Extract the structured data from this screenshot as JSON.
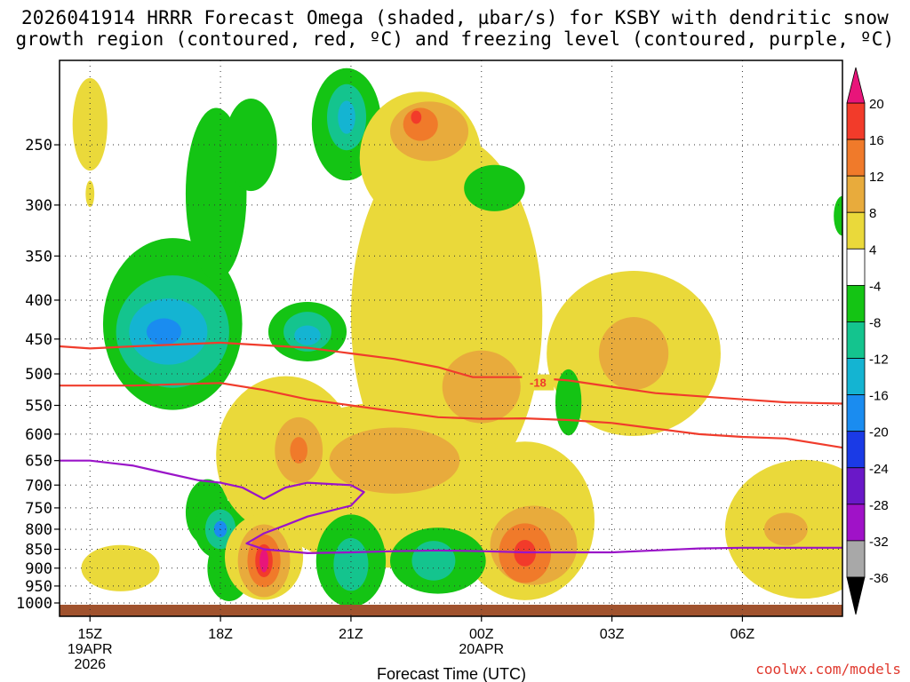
{
  "title": {
    "line1": "2026041914 HRRR Forecast Omega (shaded, µbar/s) for KSBY with dendritic snow",
    "line2": "growth region (contoured, red, ºC) and freezing level (contoured, purple, ºC)"
  },
  "credit": "coolwx.com/models",
  "chart_data": {
    "type": "heatmap",
    "xlabel": "Forecast Time (UTC)",
    "x_ticks": [
      {
        "hour": 0,
        "label": "15Z",
        "sub1": "19APR",
        "sub2": "2026"
      },
      {
        "hour": 3,
        "label": "18Z",
        "sub1": "",
        "sub2": ""
      },
      {
        "hour": 6,
        "label": "21Z",
        "sub1": "",
        "sub2": ""
      },
      {
        "hour": 9,
        "label": "00Z",
        "sub1": "20APR",
        "sub2": ""
      },
      {
        "hour": 12,
        "label": "03Z",
        "sub1": "",
        "sub2": ""
      },
      {
        "hour": 15,
        "label": "06Z",
        "sub1": "",
        "sub2": ""
      }
    ],
    "xlim_hours": [
      -0.7,
      17.3
    ],
    "y_axis": "pressure (hPa), log scale, inverted",
    "ylim": [
      1000,
      200
    ],
    "y_ticks": [
      250,
      300,
      350,
      400,
      450,
      500,
      550,
      600,
      650,
      700,
      750,
      800,
      850,
      900,
      950,
      1000
    ],
    "grid": true,
    "colorbar": {
      "label_values": [
        "20",
        "16",
        "12",
        "8",
        "4",
        "-4",
        "-8",
        "-12",
        "-16",
        "-20",
        "-24",
        "-28",
        "-32",
        "-36"
      ],
      "bins": [
        {
          "range": ">20",
          "color": "#e8157a"
        },
        {
          "range": "16 to 20",
          "color": "#f23b2a"
        },
        {
          "range": "12 to 16",
          "color": "#f07a2a"
        },
        {
          "range": "8 to 12",
          "color": "#e8ab3c"
        },
        {
          "range": "4 to 8",
          "color": "#ead93a"
        },
        {
          "range": "-4 to 4",
          "color": "#ffffff"
        },
        {
          "range": "-8 to -4",
          "color": "#14c414"
        },
        {
          "range": "-12 to -8",
          "color": "#14c48e"
        },
        {
          "range": "-16 to -12",
          "color": "#14b4d2"
        },
        {
          "range": "-20 to -16",
          "color": "#1a8cf0"
        },
        {
          "range": "-24 to -20",
          "color": "#1a3ae6"
        },
        {
          "range": "-28 to -24",
          "color": "#6a18c8"
        },
        {
          "range": "-32 to -28",
          "color": "#a012c8"
        },
        {
          "range": "-36 to -32",
          "color": "#a8a8a8"
        },
        {
          "range": "<-36",
          "color": "#000000"
        }
      ]
    },
    "omega_regions": [
      {
        "color": "#ead93a",
        "t": 0.0,
        "p": 235,
        "rt": 0.4,
        "rp": 0.14
      },
      {
        "color": "#ead93a",
        "t": 0.0,
        "p": 290,
        "rt": 0.1,
        "rp": 0.04
      },
      {
        "color": "#14c414",
        "t": 1.9,
        "p": 430,
        "rt": 1.6,
        "rp": 0.26
      },
      {
        "color": "#14c414",
        "t": 2.9,
        "p": 290,
        "rt": 0.7,
        "rp": 0.26
      },
      {
        "color": "#14c414",
        "t": 3.7,
        "p": 250,
        "rt": 0.6,
        "rp": 0.14
      },
      {
        "color": "#14c414",
        "t": 2.7,
        "p": 760,
        "rt": 0.5,
        "rp": 0.1
      },
      {
        "color": "#14c414",
        "t": 3.2,
        "p": 900,
        "rt": 0.5,
        "rp": 0.1
      },
      {
        "color": "#14c48e",
        "t": 1.9,
        "p": 440,
        "rt": 1.3,
        "rp": 0.17
      },
      {
        "color": "#14b4d2",
        "t": 1.8,
        "p": 440,
        "rt": 0.9,
        "rp": 0.1
      },
      {
        "color": "#1a8cf0",
        "t": 1.7,
        "p": 440,
        "rt": 0.4,
        "rp": 0.04
      },
      {
        "color": "#14c414",
        "t": 5.0,
        "p": 440,
        "rt": 0.9,
        "rp": 0.09
      },
      {
        "color": "#14c48e",
        "t": 5.0,
        "p": 440,
        "rt": 0.55,
        "rp": 0.06
      },
      {
        "color": "#14b4d2",
        "t": 5.0,
        "p": 445,
        "rt": 0.3,
        "rp": 0.03
      },
      {
        "color": "#14c414",
        "t": 5.9,
        "p": 235,
        "rt": 0.8,
        "rp": 0.17
      },
      {
        "color": "#14c48e",
        "t": 5.9,
        "p": 230,
        "rt": 0.45,
        "rp": 0.1
      },
      {
        "color": "#14b4d2",
        "t": 5.9,
        "p": 230,
        "rt": 0.2,
        "rp": 0.05
      },
      {
        "color": "#14c414",
        "t": 3.0,
        "p": 800,
        "rt": 0.6,
        "rp": 0.09
      },
      {
        "color": "#14c48e",
        "t": 3.0,
        "p": 800,
        "rt": 0.35,
        "rp": 0.06
      },
      {
        "color": "#1a8cf0",
        "t": 3.0,
        "p": 800,
        "rt": 0.15,
        "rp": 0.025
      },
      {
        "color": "#ead93a",
        "t": 8.2,
        "p": 420,
        "rt": 2.2,
        "rp": 0.55
      },
      {
        "color": "#ead93a",
        "t": 7.6,
        "p": 260,
        "rt": 1.4,
        "rp": 0.2
      },
      {
        "color": "#ead93a",
        "t": 6.8,
        "p": 700,
        "rt": 2.9,
        "rp": 0.25
      },
      {
        "color": "#ead93a",
        "t": 4.5,
        "p": 640,
        "rt": 1.6,
        "rp": 0.24
      },
      {
        "color": "#ead93a",
        "t": 4.0,
        "p": 870,
        "rt": 0.9,
        "rp": 0.13
      },
      {
        "color": "#ead93a",
        "t": 10.0,
        "p": 780,
        "rt": 1.6,
        "rp": 0.24
      },
      {
        "color": "#ead93a",
        "t": 12.5,
        "p": 470,
        "rt": 2.0,
        "rp": 0.25
      },
      {
        "color": "#ead93a",
        "t": 16.4,
        "p": 800,
        "rt": 1.8,
        "rp": 0.21
      },
      {
        "color": "#ead93a",
        "t": 0.7,
        "p": 900,
        "rt": 0.9,
        "rp": 0.07
      },
      {
        "color": "#e8ab3c",
        "t": 7.8,
        "p": 240,
        "rt": 0.9,
        "rp": 0.09
      },
      {
        "color": "#f07a2a",
        "t": 7.6,
        "p": 235,
        "rt": 0.4,
        "rp": 0.05
      },
      {
        "color": "#f23b2a",
        "t": 7.5,
        "p": 230,
        "rt": 0.12,
        "rp": 0.02
      },
      {
        "color": "#e8ab3c",
        "t": 9.0,
        "p": 520,
        "rt": 0.9,
        "rp": 0.11
      },
      {
        "color": "#e8ab3c",
        "t": 7.0,
        "p": 650,
        "rt": 1.5,
        "rp": 0.1
      },
      {
        "color": "#e8ab3c",
        "t": 4.8,
        "p": 630,
        "rt": 0.55,
        "rp": 0.1
      },
      {
        "color": "#f07a2a",
        "t": 4.8,
        "p": 630,
        "rt": 0.2,
        "rp": 0.04
      },
      {
        "color": "#e8ab3c",
        "t": 12.5,
        "p": 470,
        "rt": 0.8,
        "rp": 0.11
      },
      {
        "color": "#e8ab3c",
        "t": 10.2,
        "p": 840,
        "rt": 1.0,
        "rp": 0.12
      },
      {
        "color": "#f07a2a",
        "t": 10.0,
        "p": 860,
        "rt": 0.6,
        "rp": 0.09
      },
      {
        "color": "#f23b2a",
        "t": 10.0,
        "p": 860,
        "rt": 0.25,
        "rp": 0.04
      },
      {
        "color": "#e8ab3c",
        "t": 16.0,
        "p": 800,
        "rt": 0.5,
        "rp": 0.05
      },
      {
        "color": "#e8ab3c",
        "t": 4.0,
        "p": 880,
        "rt": 0.6,
        "rp": 0.11
      },
      {
        "color": "#f07a2a",
        "t": 4.0,
        "p": 880,
        "rt": 0.38,
        "rp": 0.08
      },
      {
        "color": "#f23b2a",
        "t": 4.0,
        "p": 880,
        "rt": 0.2,
        "rp": 0.05
      },
      {
        "color": "#e8157a",
        "t": 4.0,
        "p": 880,
        "rt": 0.1,
        "rp": 0.035
      },
      {
        "color": "#14c414",
        "t": 6.0,
        "p": 880,
        "rt": 0.8,
        "rp": 0.14
      },
      {
        "color": "#14c48e",
        "t": 6.0,
        "p": 890,
        "rt": 0.4,
        "rp": 0.08
      },
      {
        "color": "#14c414",
        "t": 8.0,
        "p": 880,
        "rt": 1.1,
        "rp": 0.1
      },
      {
        "color": "#14c48e",
        "t": 7.9,
        "p": 880,
        "rt": 0.5,
        "rp": 0.06
      },
      {
        "color": "#14c414",
        "t": 9.3,
        "p": 285,
        "rt": 0.7,
        "rp": 0.07
      },
      {
        "color": "#14c414",
        "t": 11.0,
        "p": 545,
        "rt": 0.3,
        "rp": 0.1
      },
      {
        "color": "#14c414",
        "t": 17.3,
        "p": 310,
        "rt": 0.2,
        "rp": 0.06
      }
    ],
    "dgz_contours_red": [
      {
        "label": "-18",
        "points": [
          [
            -0.7,
            460
          ],
          [
            0,
            463
          ],
          [
            1,
            460
          ],
          [
            3,
            455
          ],
          [
            5,
            462
          ],
          [
            6,
            470
          ],
          [
            7,
            478
          ],
          [
            8,
            490
          ],
          [
            8.8,
            505
          ],
          [
            9.5,
            505
          ],
          [
            10,
            505
          ],
          [
            11,
            510
          ],
          [
            12,
            520
          ],
          [
            13,
            530
          ],
          [
            14,
            535
          ],
          [
            15,
            540
          ],
          [
            16,
            545
          ],
          [
            17.3,
            547
          ]
        ]
      },
      {
        "label": "",
        "points": [
          [
            -0.7,
            518
          ],
          [
            1,
            518
          ],
          [
            2,
            516
          ],
          [
            3,
            514
          ],
          [
            4,
            525
          ],
          [
            5,
            540
          ],
          [
            6,
            550
          ],
          [
            7,
            560
          ],
          [
            8,
            570
          ],
          [
            9,
            573
          ],
          [
            10,
            572
          ],
          [
            11,
            575
          ],
          [
            12,
            580
          ],
          [
            13,
            590
          ],
          [
            14,
            600
          ],
          [
            15,
            605
          ],
          [
            16,
            608
          ],
          [
            17.3,
            625
          ]
        ]
      }
    ],
    "freezing_level_purple": [
      {
        "points": [
          [
            -0.7,
            650
          ],
          [
            0,
            650
          ],
          [
            1,
            660
          ],
          [
            1.5,
            670
          ],
          [
            2.5,
            690
          ],
          [
            3,
            695
          ],
          [
            3.5,
            705
          ],
          [
            4,
            730
          ],
          [
            4.5,
            705
          ],
          [
            5,
            695
          ],
          [
            6,
            700
          ],
          [
            6.3,
            715
          ],
          [
            6.0,
            745
          ],
          [
            5,
            770
          ],
          [
            4.5,
            790
          ],
          [
            4,
            810
          ],
          [
            3.6,
            835
          ],
          [
            4,
            850
          ],
          [
            5,
            860
          ],
          [
            6,
            858
          ],
          [
            7,
            855
          ],
          [
            8,
            853
          ],
          [
            9,
            855
          ],
          [
            10,
            858
          ],
          [
            11,
            858
          ],
          [
            12,
            858
          ],
          [
            13,
            853
          ],
          [
            14,
            848
          ],
          [
            15,
            846
          ],
          [
            17.3,
            846
          ]
        ]
      }
    ]
  }
}
